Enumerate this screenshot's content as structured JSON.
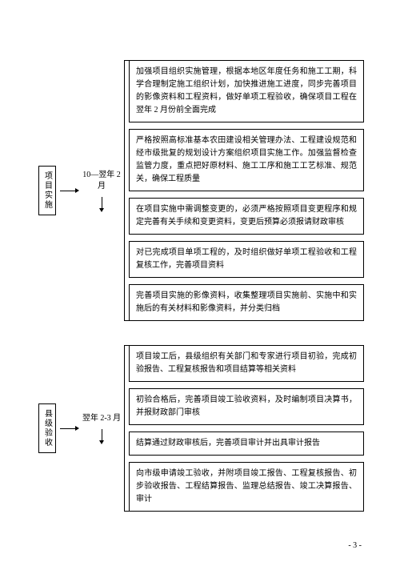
{
  "page_number": "- 3 -",
  "groups": [
    {
      "stage_label": "项目实施",
      "time_label": "10—翌年 2 月",
      "items": [
        "加强项目组织实施管理，根据本地区年度任务和施工工期，科学合理制定施工组织计划，加快推进施工进度，同步完善项目的影像资料和工程资料，做好单项工程验收，确保项目工程在翌年 2 月份前全面完成",
        "严格按照高标准基本农田建设相关管理办法、工程建设规范和经市级批复的规划设计方案组织项目实施工作。加强监督检查监管力度，重点把好原材料、施工工序和施工工艺标准、规范关，确保工程质量",
        "在项目实施中需调整变更的，必须严格按照项目变更程序和规定完善有关手续和变更资料，变更后预算必须报请财政审核",
        "对已完成项目单项工程的，及时组织做好单项工程验收和工程复核工作，完善项目资料",
        "完善项目实施的影像资料，收集整理项目实施前、实施中和实施后的有关材料和影像资料，并分类归档"
      ]
    },
    {
      "stage_label": "县级验收",
      "time_label": "翌年 2-3 月",
      "items": [
        "项目竣工后，县级组织有关部门和专家进行项目初验，完成初验报告、工程复核报告和项目结算等相关资料",
        "初验合格后，完善项目竣工验收资料，及时编制项目决算书，并报财政部门审核",
        "结算通过财政审核后，完善项目审计并出具审计报告",
        "向市级申请竣工验收，并附项目竣工报告、工程复核报告、初步验收报告、工程结算报告、监理总结报告、竣工决算报告、审计"
      ]
    }
  ]
}
